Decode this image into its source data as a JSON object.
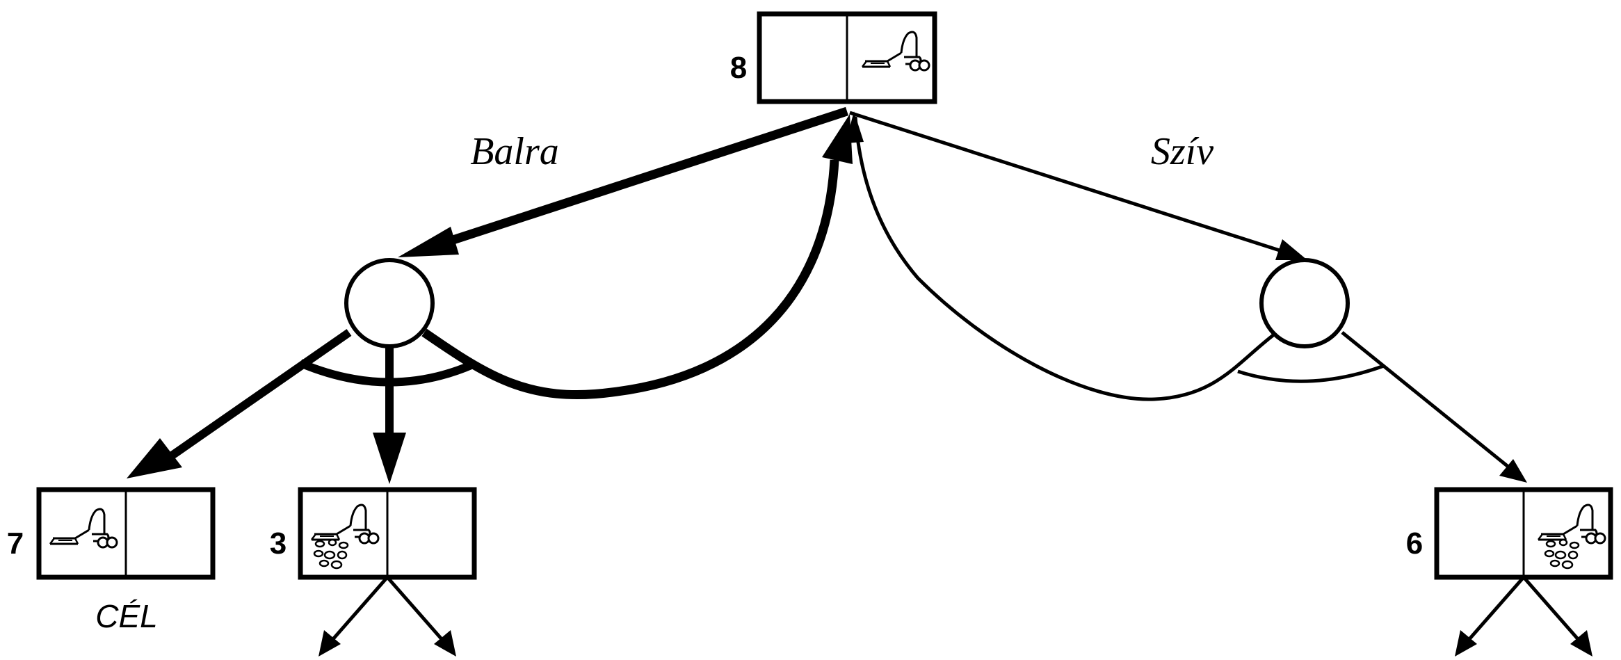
{
  "states": {
    "root": {
      "number": "8"
    },
    "left_goal": {
      "number": "7",
      "caption": "CÉL"
    },
    "left_middle": {
      "number": "3"
    },
    "right": {
      "number": "6"
    }
  },
  "actions": {
    "left": "Balra",
    "right": "Szív"
  },
  "icons": {
    "vacuum": "vacuum-cleaner-icon",
    "dirt": "dirt-icon"
  },
  "colors": {
    "stroke": "#000000",
    "background": "#ffffff"
  }
}
